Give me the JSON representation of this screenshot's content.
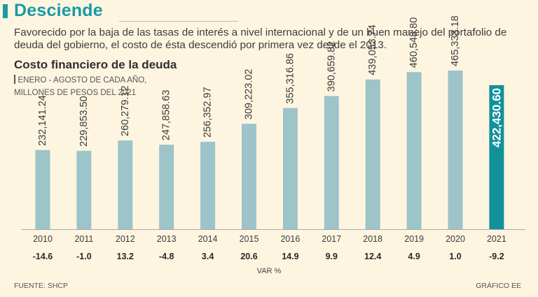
{
  "headline": "Desciende",
  "intro": "Favorecido por la baja de las tasas de interés a nivel internacional y de un buen manejo del portafolio de deuda del gobierno, el costo de ésta descendió por primera vez desde el 2013.",
  "source": "FUENTE: SHCP",
  "credit": "GRÁFICO EE",
  "colors": {
    "bar": "#9dc4c8",
    "highlight": "#12919b",
    "accent": "#1a9aa5"
  },
  "chart_data": {
    "type": "bar",
    "title": "Costo financiero de la deuda",
    "subtitle_lines": [
      "ENERO - AGOSTO DE CADA AÑO,",
      "MILLONES DE PESOS DEL 2021"
    ],
    "categories": [
      "2010",
      "2011",
      "2012",
      "2013",
      "2014",
      "2015",
      "2016",
      "2017",
      "2018",
      "2019",
      "2020",
      "2021"
    ],
    "values": [
      232141.24,
      229853.5,
      260279.12,
      247858.63,
      256352.97,
      309223.02,
      355316.86,
      390659.82,
      439053.74,
      460548.8,
      465333.18,
      422430.6
    ],
    "value_labels": [
      "232,141.24",
      "229,853.50",
      "260,279.12",
      "247,858.63",
      "256,352.97",
      "309,223.02",
      "355,316.86",
      "390,659.82",
      "439,053.74",
      "460,548.80",
      "465,333.18",
      "422,430.60"
    ],
    "highlight_index": 11,
    "var_pct": [
      "-14.6",
      "-1.0",
      "13.2",
      "-4.8",
      "3.4",
      "20.6",
      "14.9",
      "9.9",
      "12.4",
      "4.9",
      "1.0",
      "-9.2"
    ],
    "var_label": "VAR %",
    "ylim": [
      0,
      500000
    ]
  }
}
